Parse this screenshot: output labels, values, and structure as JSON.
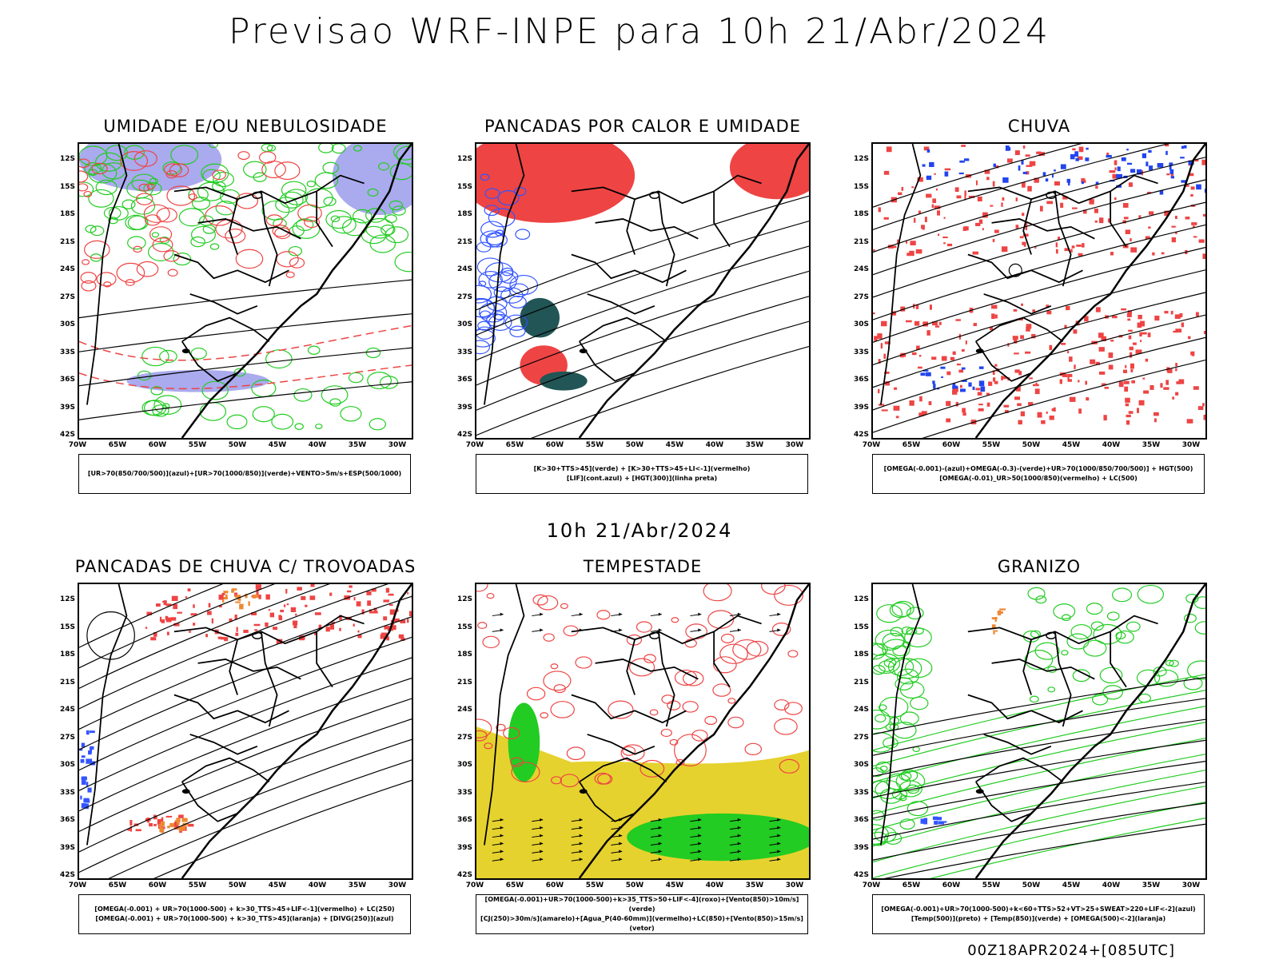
{
  "header": {
    "title": "Previsao WRF-INPE  para 10h 21/Abr/2024",
    "subtitle": "10h 21/Abr/2024",
    "footer": "00Z18APR2024+[085UTC]"
  },
  "axes": {
    "lat_labels": [
      "12S",
      "15S",
      "18S",
      "21S",
      "24S",
      "27S",
      "30S",
      "33S",
      "36S",
      "39S",
      "42S"
    ],
    "lon_labels": [
      "70W",
      "65W",
      "60W",
      "55W",
      "50W",
      "45W",
      "40W",
      "35W",
      "30W"
    ]
  },
  "panels": [
    {
      "id": "umidade",
      "title": "UMIDADE E/OU NEBULOSIDADE",
      "legend": [
        "[UR>70(850/700/500)](azul)+[UR>70(1000/850)](verde)+VENTO>5m/s+ESP(500/1000)"
      ],
      "colors": {
        "fill": "#aaaaee",
        "contour": "#22cc22",
        "dash": "#ee4444"
      }
    },
    {
      "id": "pancadas-calor",
      "title": "PANCADAS POR CALOR E UMIDADE",
      "legend": [
        "[K>30+TTS>45](verde)  +  [K>30+TTS>45+LI<-1](vermelho)",
        "[LIF](cont.azul)  +  [HGT(300)](linha preta)"
      ],
      "colors": {
        "fill": "#ee4444",
        "dark": "#225555",
        "contour": "#3355ff"
      }
    },
    {
      "id": "chuva",
      "title": "CHUVA",
      "legend": [
        "[OMEGA(-0.001)-(azul)+OMEGA(-0.3)-(verde)+UR>70(1000/850/700/500)]  +  HGT(500)",
        "[OMEGA(-0.01)_UR>50(1000/850)(vermelho)  +  LC(500)"
      ],
      "colors": {
        "fill": "#ee4444",
        "blue": "#2244ee"
      }
    },
    {
      "id": "trovoadas",
      "title": "PANCADAS DE CHUVA C/ TROVOADAS",
      "legend": [
        "[OMEGA(-0.001)  +  UR>70(1000-500)  +  k>30_TTS>45+LIF<-1](vermelho)  +  LC(250)",
        "[OMEGA(-0.001)  +  UR>70(1000-500)  +  k>30_TTS>45](laranja)  +  [DIVG(250)](azul)"
      ],
      "colors": {
        "fill": "#ee4444",
        "orange": "#ee8833",
        "blue": "#3355ff"
      }
    },
    {
      "id": "tempestade",
      "title": "TEMPESTADE",
      "legend": [
        "[OMEGA(-0.001)+UR>70(1000-500)+k>35_TTS>50+LIF<-4](roxo)+[Vento(850)>10m/s](verde)",
        "[CJ(250)>30m/s](amarelo)+[Agua_P(40-60mm)](vermelho)+LC(850)+[Vento(850)>15m/s](vetor)"
      ],
      "colors": {
        "fill": "#e6d22e",
        "green": "#22cc22",
        "red": "#ee4444"
      }
    },
    {
      "id": "granizo",
      "title": "GRANIZO",
      "legend": [
        "[OMEGA(-0.001)+UR>70(1000-500)+k<60+TTS>52+VT>25+SWEAT>220+LIF<-2](azul)",
        "[Temp(500)](preto)  +  [Temp(850)](verde)  +  [OMEGA(500)<-2](laranja)"
      ],
      "colors": {
        "green": "#22cc22",
        "orange": "#ee8833",
        "blue": "#3355ff"
      }
    }
  ]
}
